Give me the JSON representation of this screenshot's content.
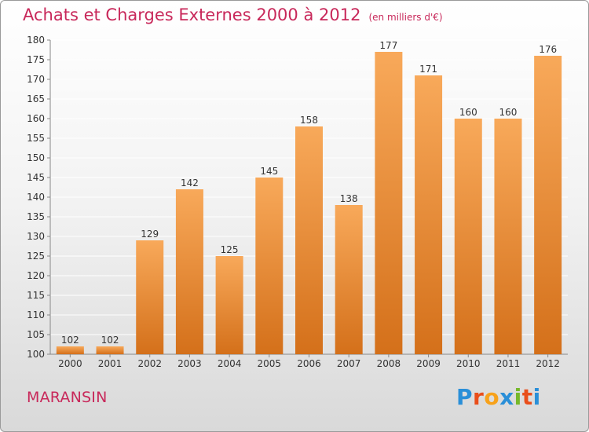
{
  "header": {
    "title": "Achats et Charges Externes 2000 à 2012",
    "unit": "(en milliers d'€)"
  },
  "footer": {
    "town": "MARANSIN",
    "logo_text": "Proxiti",
    "logo_colors": [
      "#2a8fd8",
      "#e94e1b",
      "#f7a21b",
      "#2a8fd8",
      "#76b82a",
      "#e94e1b",
      "#2a8fd8"
    ]
  },
  "colors": {
    "bar_top": "#f8a95a",
    "bar_bottom": "#d4701a",
    "title": "#c8285a",
    "grid": "#ffffff"
  },
  "chart_data": {
    "type": "bar",
    "title": "Achats et Charges Externes 2000 à 2012",
    "categories": [
      "2000",
      "2001",
      "2002",
      "2003",
      "2004",
      "2005",
      "2006",
      "2007",
      "2008",
      "2009",
      "2010",
      "2011",
      "2012"
    ],
    "values": [
      102,
      102,
      129,
      142,
      125,
      145,
      158,
      138,
      177,
      171,
      160,
      160,
      176
    ],
    "ylim": [
      100,
      180
    ],
    "yticks": [
      100,
      105,
      110,
      115,
      120,
      125,
      130,
      135,
      140,
      145,
      150,
      155,
      160,
      165,
      170,
      175,
      180
    ],
    "grid": true
  }
}
